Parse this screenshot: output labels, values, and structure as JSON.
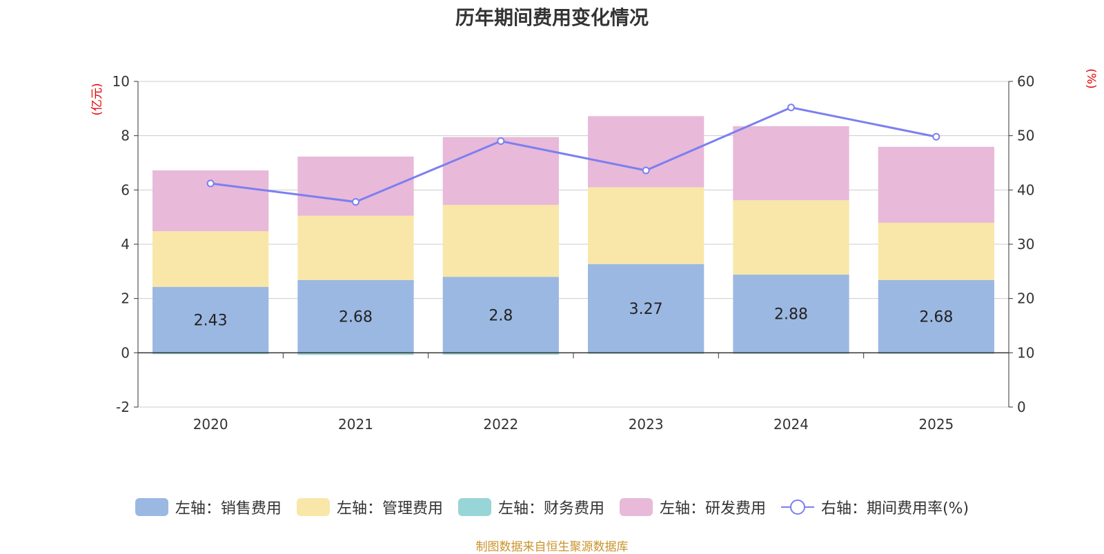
{
  "chart_data": {
    "type": "bar",
    "title": "历年期间费用变化情况",
    "categories": [
      "2020",
      "2021",
      "2022",
      "2023",
      "2024",
      "2025"
    ],
    "left_axis": {
      "unit_label": "(亿元)",
      "ylim": [
        -2,
        10
      ],
      "ticks": [
        -2,
        0,
        2,
        4,
        6,
        8,
        10
      ]
    },
    "right_axis": {
      "unit_label": "(%)",
      "ylim": [
        0,
        60
      ],
      "ticks": [
        0,
        10,
        20,
        30,
        40,
        50,
        60
      ]
    },
    "series": [
      {
        "name": "左轴：销售费用",
        "kind": "bar",
        "axis": "left",
        "color": "#9bb8e2",
        "values": [
          2.43,
          2.68,
          2.8,
          3.27,
          2.88,
          2.68
        ],
        "show_labels": true
      },
      {
        "name": "左轴：管理费用",
        "kind": "bar",
        "axis": "left",
        "color": "#f8e7a8",
        "values": [
          2.05,
          2.37,
          2.65,
          2.83,
          2.74,
          2.11
        ]
      },
      {
        "name": "左轴：财务费用",
        "kind": "bar",
        "axis": "left",
        "color": "#98d5d6",
        "values": [
          -0.05,
          -0.08,
          -0.07,
          -0.03,
          -0.01,
          -0.01
        ]
      },
      {
        "name": "左轴：研发费用",
        "kind": "bar",
        "axis": "left",
        "color": "#e8b9d9",
        "values": [
          2.24,
          2.18,
          2.5,
          2.62,
          2.73,
          2.8
        ]
      },
      {
        "name": "右轴：期间费用率(%)",
        "kind": "line",
        "axis": "right",
        "color": "#7b7ff0",
        "values": [
          41.2,
          37.8,
          49.0,
          43.6,
          55.2,
          49.8
        ]
      }
    ],
    "grid": true,
    "legend_position": "bottom"
  },
  "source_note": "制图数据来自恒生聚源数据库"
}
